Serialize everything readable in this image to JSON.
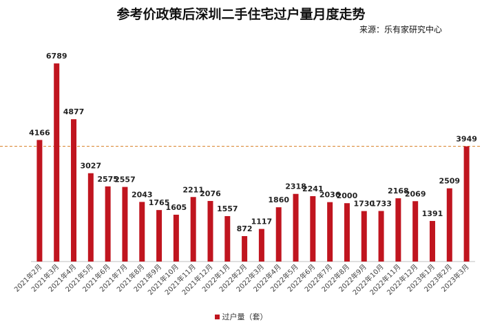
{
  "chart_data": {
    "type": "bar",
    "title": "参考价政策后深圳二手住宅过户量月度走势",
    "source": "来源：乐有家研究中心",
    "categories": [
      "2021年2月",
      "2021年3月",
      "2021年4月",
      "2021年5月",
      "2021年6月",
      "2021年7月",
      "2021年8月",
      "2021年9月",
      "2021年10月",
      "2021年11月",
      "2021年12月",
      "2022年1月",
      "2022年2月",
      "2022年3月",
      "2022年4月",
      "2022年5月",
      "2022年6月",
      "2022年7月",
      "2022年8月",
      "2022年9月",
      "2022年10月",
      "2022年11月",
      "2022年12月",
      "2023年1月",
      "2023年2月",
      "2023年3月"
    ],
    "series": [
      {
        "name": "过户量（套）",
        "color": "#c0151f",
        "values": [
          4166,
          6789,
          4877,
          3027,
          2575,
          2557,
          2043,
          1765,
          1605,
          2211,
          2076,
          1557,
          872,
          1117,
          1860,
          2318,
          2241,
          2036,
          2000,
          1730,
          1733,
          2168,
          2069,
          1391,
          2509,
          3949
        ]
      }
    ],
    "reference_line": {
      "value": 3949,
      "color": "#d9822b",
      "style": "dashed"
    },
    "legend_position": "bottom",
    "grid": false
  }
}
